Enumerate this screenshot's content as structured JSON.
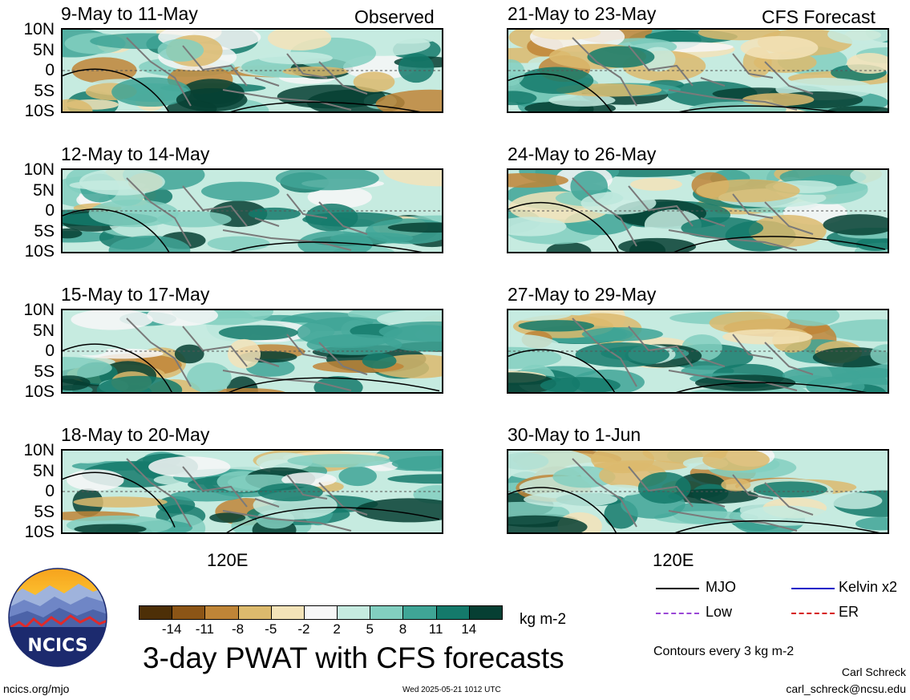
{
  "chart_data": {
    "type": "heatmap",
    "title": "3-day PWAT with CFS forecasts",
    "column_labels": [
      "Observed",
      "CFS Forecast"
    ],
    "panels": [
      {
        "label": "9-May to 11-May",
        "source": "Observed"
      },
      {
        "label": "12-May to 14-May",
        "source": "Observed"
      },
      {
        "label": "15-May to 17-May",
        "source": "Observed"
      },
      {
        "label": "18-May to 20-May",
        "source": "Observed"
      },
      {
        "label": "21-May to 23-May",
        "source": "CFS Forecast"
      },
      {
        "label": "24-May to 26-May",
        "source": "CFS Forecast"
      },
      {
        "label": "27-May to 29-May",
        "source": "CFS Forecast"
      },
      {
        "label": "30-May to 1-Jun",
        "source": "CFS Forecast"
      }
    ],
    "y_ticks": [
      "10N",
      "5N",
      "0",
      "5S",
      "10S"
    ],
    "x_ticks": [
      "120E"
    ],
    "colorbar": {
      "ticks": [
        "-14",
        "-11",
        "-8",
        "-5",
        "-2",
        "2",
        "5",
        "8",
        "11",
        "14"
      ],
      "colors": [
        "#4d2f07",
        "#8c5516",
        "#bf8537",
        "#dcba6d",
        "#f3e3b8",
        "#f7f7f7",
        "#c6ebe0",
        "#82cfc0",
        "#3fa596",
        "#147a6b",
        "#063f33"
      ],
      "unit": "kg m-2"
    },
    "legend": [
      {
        "name": "MJO",
        "color": "#000000"
      },
      {
        "name": "Kelvin x2",
        "color": "#1010c8"
      },
      {
        "name": "Low",
        "color": "#9a47d6"
      },
      {
        "name": "ER",
        "color": "#d61010"
      }
    ],
    "contour_note": "Contours every 3 kg m-2"
  },
  "footer": {
    "site": "ncics.org/mjo",
    "timestamp": "Wed 2025-05-21 1012 UTC",
    "author": "Carl Schreck",
    "email": "carl_schreck@ncsu.edu",
    "logo_text": "NCICS"
  }
}
